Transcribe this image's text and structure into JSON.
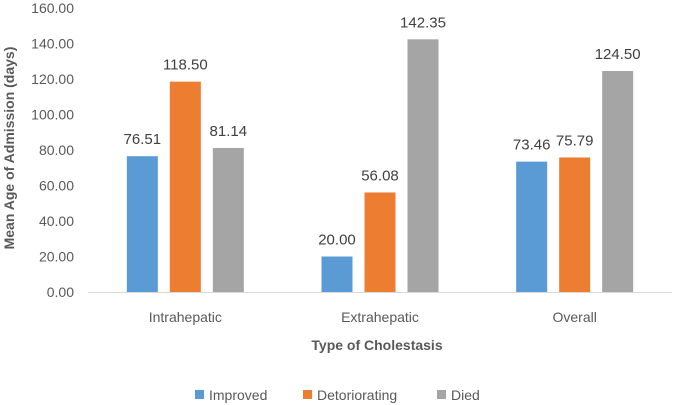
{
  "chart_data": {
    "type": "bar",
    "categories": [
      "Intrahepatic",
      "Extrahepatic",
      "Overall"
    ],
    "series": [
      {
        "name": "Improved",
        "values": [
          76.51,
          20.0,
          73.46
        ],
        "color": "#5B9BD5"
      },
      {
        "name": "Detoriorating",
        "values": [
          118.5,
          56.08,
          75.79
        ],
        "color": "#ED7D31"
      },
      {
        "name": "Died",
        "values": [
          81.14,
          142.35,
          124.5
        ],
        "color": "#A5A5A5"
      }
    ],
    "xlabel": "Type  of Cholestasis",
    "ylabel": "Mean Age of Admission (days)",
    "ylim": [
      0,
      160
    ],
    "yticks": [
      "0.00",
      "20.00",
      "40.00",
      "60.00",
      "80.00",
      "100.00",
      "120.00",
      "140.00",
      "160.00"
    ],
    "grid": false,
    "legend": "bottom"
  }
}
